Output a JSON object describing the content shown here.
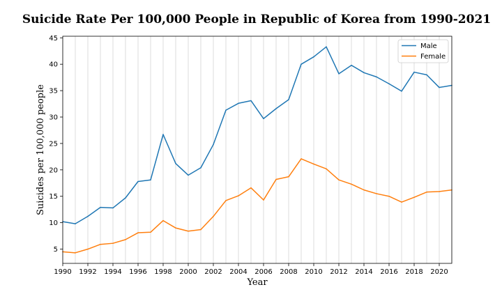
{
  "chart_data": {
    "type": "line",
    "title": "Suicide Rate Per 100,000 People in Republic of Korea from 1990-2021",
    "xlabel": "Year",
    "ylabel": "Suicides per 100,000 people",
    "xlim": [
      1990,
      2021
    ],
    "ylim": [
      2.3,
      45.3
    ],
    "x_ticks": [
      1990,
      1992,
      1994,
      1996,
      1998,
      2000,
      2002,
      2004,
      2006,
      2008,
      2010,
      2012,
      2014,
      2016,
      2018,
      2020
    ],
    "y_ticks": [
      5,
      10,
      15,
      20,
      25,
      30,
      35,
      40,
      45
    ],
    "grid": "vertical",
    "legend_position": "top-right",
    "x": [
      1990,
      1991,
      1992,
      1993,
      1994,
      1995,
      1996,
      1997,
      1998,
      1999,
      2000,
      2001,
      2002,
      2003,
      2004,
      2005,
      2006,
      2007,
      2008,
      2009,
      2010,
      2011,
      2012,
      2013,
      2014,
      2015,
      2016,
      2017,
      2018,
      2019,
      2020,
      2021
    ],
    "series": [
      {
        "name": "Male",
        "color": "#1f77b4",
        "values": [
          10.2,
          9.8,
          11.2,
          12.9,
          12.8,
          14.7,
          17.8,
          18.1,
          26.7,
          21.2,
          19.0,
          20.4,
          24.8,
          31.3,
          32.6,
          33.1,
          29.7,
          31.6,
          33.3,
          40.0,
          41.4,
          43.3,
          38.2,
          39.8,
          38.4,
          37.6,
          36.3,
          34.9,
          38.5,
          38.0,
          35.6,
          36.0
        ]
      },
      {
        "name": "Female",
        "color": "#ff7f0e",
        "values": [
          4.5,
          4.3,
          5.0,
          5.9,
          6.1,
          6.8,
          8.1,
          8.2,
          10.4,
          9.0,
          8.4,
          8.7,
          11.2,
          14.2,
          15.1,
          16.6,
          14.3,
          18.2,
          18.7,
          22.1,
          21.1,
          20.2,
          18.1,
          17.3,
          16.2,
          15.5,
          15.0,
          13.9,
          14.8,
          15.8,
          15.9,
          16.2
        ]
      }
    ]
  }
}
